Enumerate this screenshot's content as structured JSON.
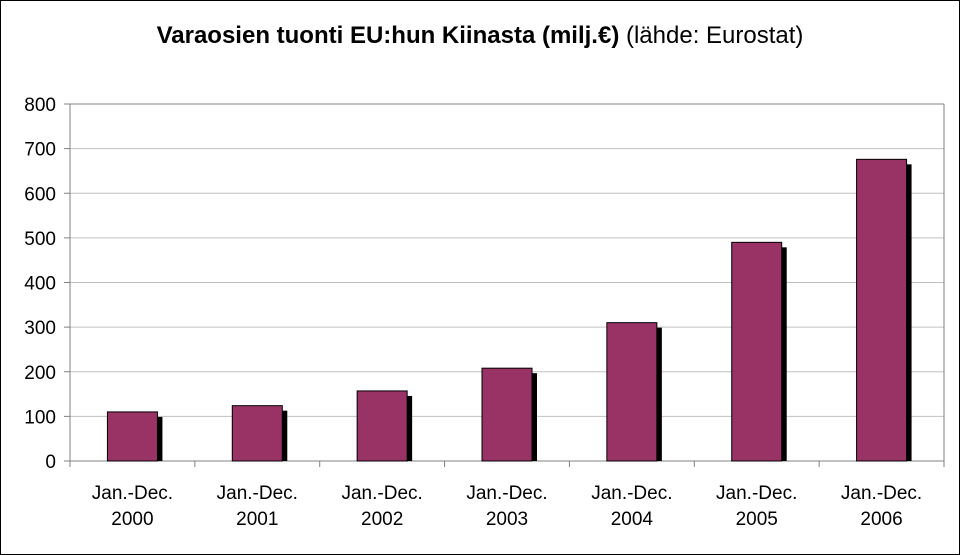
{
  "chart_data": {
    "type": "bar",
    "title": "Varaosien tuonti EU:hun Kiinasta (milj.€)",
    "subtitle": "(lähde: Eurostat)",
    "xlabel": "",
    "ylabel": "",
    "categories": [
      [
        "Jan.-Dec.",
        "2000"
      ],
      [
        "Jan.-Dec.",
        "2001"
      ],
      [
        "Jan.-Dec.",
        "2002"
      ],
      [
        "Jan.-Dec.",
        "2003"
      ],
      [
        "Jan.-Dec.",
        "2004"
      ],
      [
        "Jan.-Dec.",
        "2005"
      ],
      [
        "Jan.-Dec.",
        "2006"
      ]
    ],
    "values": [
      110,
      124,
      157,
      208,
      310,
      490,
      676
    ],
    "ylim": [
      0,
      800
    ],
    "yticks": [
      "0",
      "100",
      "200",
      "300",
      "400",
      "500",
      "600",
      "700",
      "800"
    ],
    "grid": true,
    "legend": "none",
    "colors": {
      "bar": "#993366",
      "shadow": "#000000",
      "grid": "#c0c0c0",
      "axis": "#808080"
    }
  }
}
